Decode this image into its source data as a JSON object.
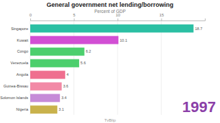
{
  "chart_data": {
    "type": "bar",
    "orientation": "horizontal",
    "title": "General government net lending/borrowing",
    "subtitle": "Percent of GDP",
    "categories": [
      "Singapore",
      "Kuwait",
      "Congo",
      "Venezuela",
      "Angola",
      "Guinea-Bissau",
      "Solomon Islands",
      "Nigeria"
    ],
    "values": [
      18.7,
      10.1,
      6.2,
      5.6,
      4,
      3.6,
      3.4,
      3.1
    ],
    "colors": [
      "#2bbfa3",
      "#d24fd4",
      "#4ccf6d",
      "#4ccf6d",
      "#ef6f8f",
      "#f28aa6",
      "#c68bd8",
      "#c9b24c"
    ],
    "xlim": [
      0,
      20
    ],
    "xticks": [
      0,
      5,
      10,
      15
    ],
    "grid": true,
    "data_labels": true,
    "annotations": [
      "1997",
      "TvBlip"
    ]
  }
}
